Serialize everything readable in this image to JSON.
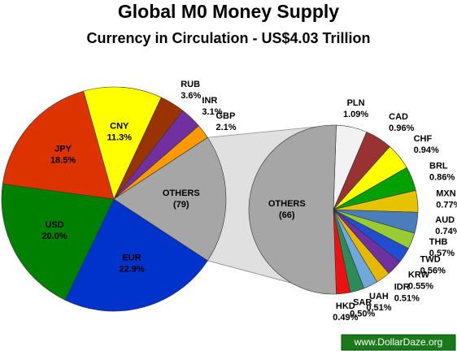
{
  "chart_data": [
    {
      "type": "pie",
      "title": "Global M0 Money Supply",
      "subtitle": "Currency in Circulation - US$4.03 Trillion",
      "categories": [
        "EUR",
        "USD",
        "JPY",
        "CNY",
        "RUB",
        "INR",
        "GBP",
        "OTHERS"
      ],
      "values": [
        22.9,
        20.0,
        18.5,
        11.3,
        3.6,
        3.1,
        2.1,
        18.5
      ],
      "value_labels": [
        "22.9%",
        "20.0%",
        "18.5%",
        "11.3%",
        "3.6%",
        "3.1%",
        "2.1%",
        null
      ],
      "count_labels": [
        null,
        null,
        null,
        null,
        null,
        null,
        null,
        "(79)"
      ],
      "colors": [
        "#0033cc",
        "#008000",
        "#dd3300",
        "#ffff00",
        "#993300",
        "#7030a0",
        "#ff9900",
        "#a6a6a6"
      ]
    },
    {
      "type": "pie",
      "categories": [
        "PLN",
        "CAD",
        "CHF",
        "BRL",
        "MXN",
        "AUD",
        "THB",
        "TWD",
        "KRW",
        "IDR",
        "UAH",
        "SAR",
        "HKD",
        "OTHERS"
      ],
      "values": [
        1.09,
        0.96,
        0.94,
        0.86,
        0.77,
        0.74,
        0.57,
        0.56,
        0.55,
        0.51,
        0.51,
        0.5,
        0.49,
        9.45
      ],
      "value_labels": [
        "1.09%",
        "0.96%",
        "0.94%",
        "0.86%",
        "0.77%",
        "0.74%",
        "0.57%",
        "0.56%",
        "0.55%",
        "0.51%",
        "0.51%",
        "0.50%",
        "0.49%",
        null
      ],
      "count_labels": [
        null,
        null,
        null,
        null,
        null,
        null,
        null,
        null,
        null,
        null,
        null,
        null,
        null,
        "(66)"
      ],
      "colors": [
        "#f2f2f2",
        "#993333",
        "#ffff00",
        "#00a000",
        "#e6c300",
        "#4a7ebb",
        "#99cc33",
        "#1f4fd0",
        "#7030a0",
        "#e6b800",
        "#6fa8dc",
        "#2e8b57",
        "#ee1111",
        "#a6a6a6"
      ]
    }
  ],
  "watermark": "www.DollarDaze.org"
}
